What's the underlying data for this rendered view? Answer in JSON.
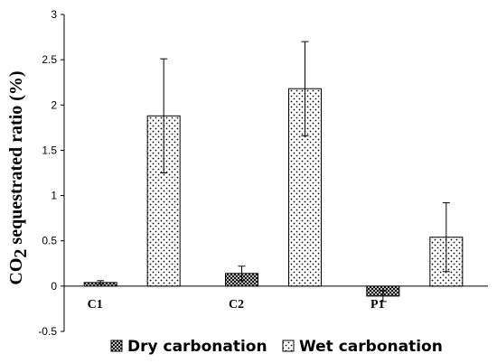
{
  "chart_data": {
    "type": "bar",
    "title": "",
    "xlabel": "",
    "ylabel": {
      "prefix": "CO",
      "subscript": "2",
      "suffix": " sequestrated ratio (%)"
    },
    "categories": [
      "C1",
      "C2",
      "P1"
    ],
    "ylim": [
      -0.5,
      3
    ],
    "yticks": [
      -0.5,
      0,
      0.5,
      1,
      1.5,
      2,
      2.5,
      3
    ],
    "ytick_labels": [
      "-0.5",
      "0",
      "0.5",
      "1",
      "1.5",
      "2",
      "2.5",
      "3"
    ],
    "grid": false,
    "legend_position": "bottom",
    "series": [
      {
        "name": "Dry carbonation",
        "pattern": "crosshatch",
        "values": [
          0.04,
          0.14,
          -0.11
        ],
        "error": [
          0.02,
          0.08,
          0.06
        ]
      },
      {
        "name": "Wet carbonation",
        "pattern": "dots",
        "values": [
          1.88,
          2.18,
          0.54
        ],
        "error": [
          0.63,
          0.52,
          0.38
        ]
      }
    ],
    "colors": {
      "axis": "#000000",
      "bar_fill": "#ffffff",
      "pattern_ink": "#000000"
    }
  }
}
